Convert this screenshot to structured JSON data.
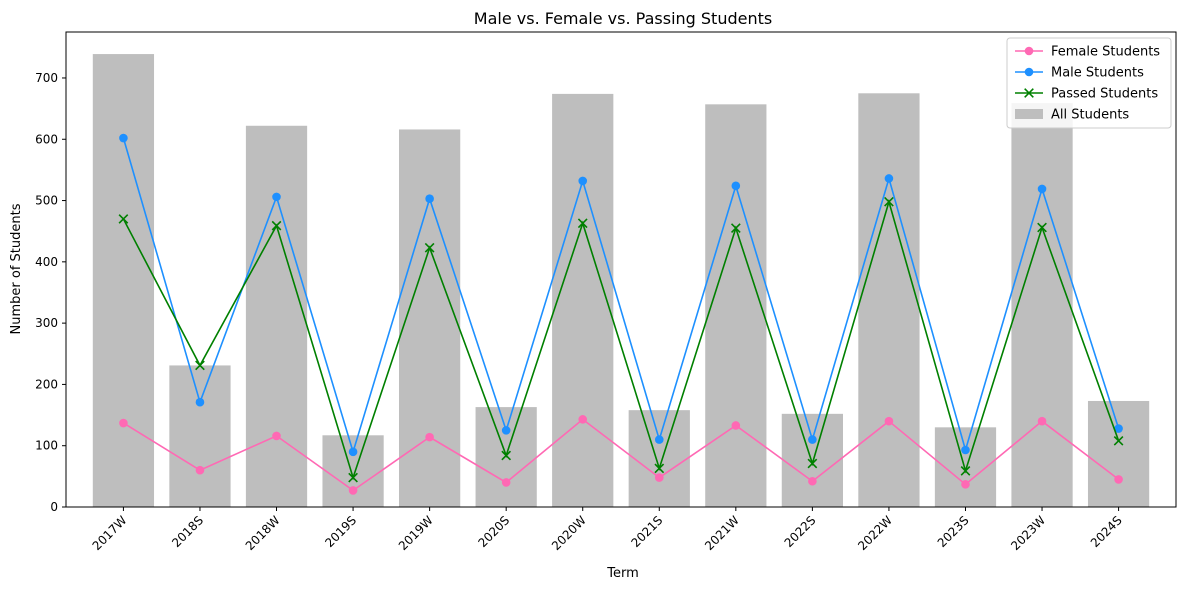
{
  "chart_data": {
    "type": "bar",
    "title": "Male vs. Female vs. Passing Students",
    "xlabel": "Term",
    "ylabel": "Number of Students",
    "ylim": [
      0,
      775
    ],
    "yticks": [
      0,
      100,
      200,
      300,
      400,
      500,
      600,
      700
    ],
    "grid": false,
    "legend_position": "top-right",
    "categories": [
      "2017W",
      "2018S",
      "2018W",
      "2019S",
      "2019W",
      "2020S",
      "2020W",
      "2021S",
      "2021W",
      "2022S",
      "2022W",
      "2023S",
      "2023W",
      "2024S"
    ],
    "series": [
      {
        "name": "Female Students",
        "kind": "line",
        "marker": "circle",
        "color": "#ff69b4",
        "values": [
          137,
          60,
          116,
          27,
          114,
          40,
          143,
          48,
          133,
          42,
          140,
          37,
          140,
          45
        ]
      },
      {
        "name": "Male Students",
        "kind": "line",
        "marker": "circle",
        "color": "#1e90ff",
        "values": [
          602,
          171,
          506,
          90,
          503,
          125,
          532,
          110,
          524,
          110,
          536,
          93,
          519,
          128
        ]
      },
      {
        "name": "Passed Students",
        "kind": "line",
        "marker": "x",
        "color": "#008000",
        "values": [
          470,
          231,
          459,
          48,
          423,
          84,
          463,
          63,
          455,
          71,
          498,
          59,
          456,
          108
        ]
      },
      {
        "name": "All Students",
        "kind": "bar",
        "color": "#bebebe",
        "values": [
          739,
          231,
          622,
          117,
          616,
          163,
          674,
          158,
          657,
          152,
          675,
          130,
          659,
          173
        ]
      }
    ],
    "legend_order": [
      "Female Students",
      "Male Students",
      "Passed Students",
      "All Students"
    ]
  }
}
